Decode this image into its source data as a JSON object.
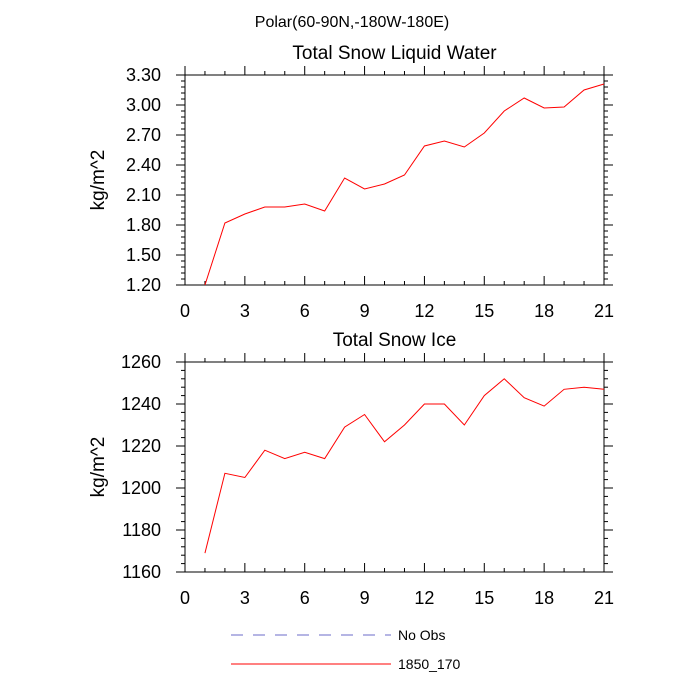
{
  "figure": {
    "title": "Polar(60-90N,-180W-180E)"
  },
  "legend": {
    "entries": [
      {
        "label": "No Obs",
        "color": "#6b6bc9",
        "dash": true
      },
      {
        "label": "1850_170",
        "color": "#ff0000",
        "dash": false
      }
    ]
  },
  "chart_data": [
    {
      "type": "line",
      "title": "Total Snow Liquid Water",
      "xlabel": "",
      "ylabel": "kg/m^2",
      "xlim": [
        0,
        21
      ],
      "ylim": [
        1.2,
        3.3
      ],
      "xticks": [
        0,
        3,
        6,
        9,
        12,
        15,
        18,
        21
      ],
      "xtick_labels": [
        "0",
        "3",
        "6",
        "9",
        "12",
        "15",
        "18",
        "21"
      ],
      "yticks": [
        1.2,
        1.5,
        1.8,
        2.1,
        2.4,
        2.7,
        3.0,
        3.3
      ],
      "ytick_labels": [
        "1.20",
        "1.50",
        "1.80",
        "2.10",
        "2.40",
        "2.70",
        "3.00",
        "3.30"
      ],
      "series": [
        {
          "name": "1850_170",
          "color": "#ff0000",
          "x": [
            1,
            2,
            3,
            4,
            5,
            6,
            7,
            8,
            9,
            10,
            11,
            12,
            13,
            14,
            15,
            16,
            17,
            18,
            19,
            20,
            21
          ],
          "values": [
            1.2,
            1.82,
            1.91,
            1.98,
            1.98,
            2.01,
            1.94,
            2.27,
            2.16,
            2.21,
            2.3,
            2.59,
            2.64,
            2.58,
            2.72,
            2.94,
            3.07,
            2.97,
            2.98,
            3.15,
            3.21
          ]
        }
      ]
    },
    {
      "type": "line",
      "title": "Total Snow Ice",
      "xlabel": "",
      "ylabel": "kg/m^2",
      "xlim": [
        0,
        21
      ],
      "ylim": [
        1160,
        1260
      ],
      "xticks": [
        0,
        3,
        6,
        9,
        12,
        15,
        18,
        21
      ],
      "xtick_labels": [
        "0",
        "3",
        "6",
        "9",
        "12",
        "15",
        "18",
        "21"
      ],
      "yticks": [
        1160,
        1180,
        1200,
        1220,
        1240,
        1260
      ],
      "ytick_labels": [
        "1160",
        "1180",
        "1200",
        "1220",
        "1240",
        "1260"
      ],
      "series": [
        {
          "name": "1850_170",
          "color": "#ff0000",
          "x": [
            1,
            2,
            3,
            4,
            5,
            6,
            7,
            8,
            9,
            10,
            11,
            12,
            13,
            14,
            15,
            16,
            17,
            18,
            19,
            20,
            21
          ],
          "values": [
            1169,
            1207,
            1205,
            1218,
            1214,
            1217,
            1214,
            1229,
            1235,
            1222,
            1230,
            1240,
            1240,
            1230,
            1244,
            1252,
            1243,
            1239,
            1247,
            1248,
            1247
          ]
        }
      ]
    }
  ]
}
